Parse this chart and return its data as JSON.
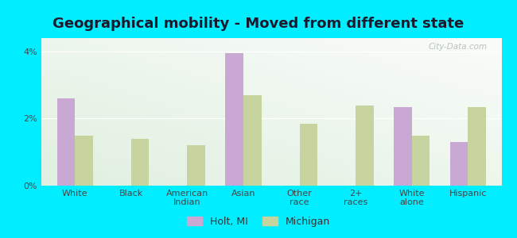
{
  "title": "Geographical mobility - Moved from different state",
  "categories": [
    "White",
    "Black",
    "American\nIndian",
    "Asian",
    "Other\nrace",
    "2+\nraces",
    "White\nalone",
    "Hispanic"
  ],
  "holt_values": [
    2.6,
    0,
    0,
    3.95,
    0,
    0,
    2.35,
    1.3
  ],
  "michigan_values": [
    1.5,
    1.4,
    1.2,
    2.7,
    1.85,
    2.4,
    1.5,
    2.35
  ],
  "holt_color": "#c9a8d4",
  "michigan_color": "#c8d4a0",
  "outer_background": "#00eeff",
  "ylim": [
    0,
    4.4
  ],
  "legend_holt": "Holt, MI",
  "legend_michigan": "Michigan",
  "bar_width": 0.32,
  "title_fontsize": 13,
  "tick_fontsize": 8
}
